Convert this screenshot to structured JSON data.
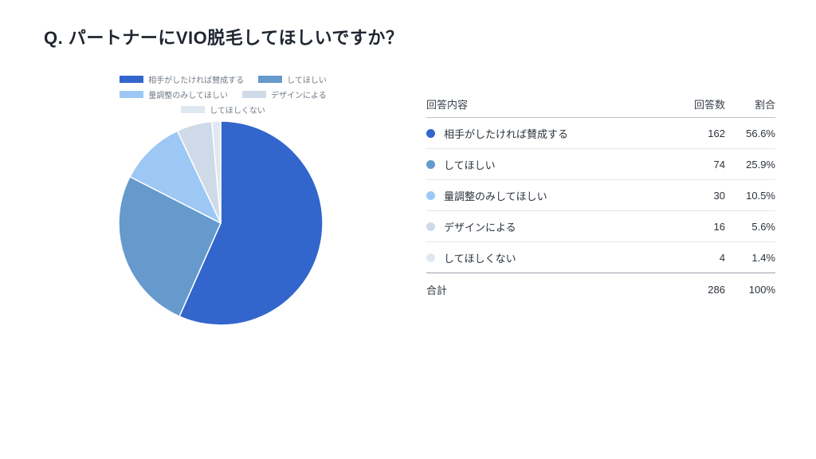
{
  "page": {
    "title": "Q. パートナーにVIO脱毛してほしいですか？",
    "background": "#ffffff"
  },
  "chart_data": {
    "type": "pie",
    "title": "Q. パートナーにVIO脱毛してほしいですか？",
    "categories": [
      "相手がしたければ賛成する",
      "してほしい",
      "量調整のみしてほしい",
      "デザインによる",
      "してほしくない"
    ],
    "values": [
      162,
      74,
      30,
      16,
      4
    ],
    "percents": [
      "56.6%",
      "25.9%",
      "10.5%",
      "5.6%",
      "1.4%"
    ],
    "total": 286,
    "colors": [
      "#3366CC",
      "#6699CC",
      "#9DC8F5",
      "#CFDAE9",
      "#DFE8F2"
    ],
    "slice_border_color": "#ffffff",
    "start_angle_deg": -90,
    "direction": "clockwise",
    "legend_position": "top"
  },
  "table": {
    "headers": [
      "回答内容",
      "回答数",
      "割合"
    ],
    "rows": [
      {
        "label": "相手がしたければ賛成する",
        "count": "162",
        "percent": "56.6%"
      },
      {
        "label": "してほしい",
        "count": "74",
        "percent": "25.9%"
      },
      {
        "label": "量調整のみしてほしい",
        "count": "30",
        "percent": "10.5%"
      },
      {
        "label": "デザインによる",
        "count": "16",
        "percent": "5.6%"
      },
      {
        "label": "してほしくない",
        "count": "4",
        "percent": "1.4%"
      }
    ],
    "total_row": {
      "label": "合計",
      "count": "286",
      "percent": "100%"
    }
  }
}
